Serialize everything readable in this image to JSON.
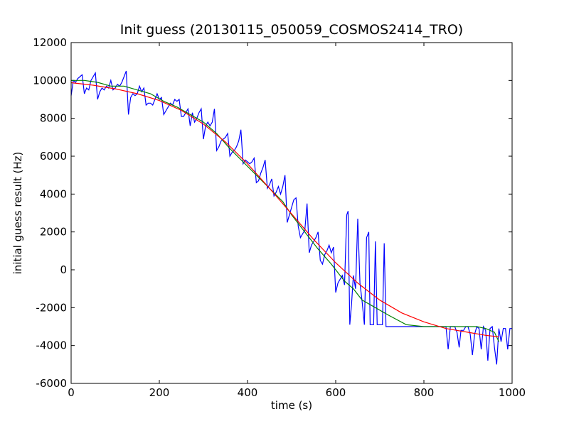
{
  "chart_data": {
    "type": "line",
    "title": "Init guess (20130115_050059_COSMOS2414_TRO)",
    "xlabel": "time (s)",
    "ylabel": "initial guess result (Hz)",
    "xlim": [
      0,
      1000
    ],
    "ylim": [
      -6000,
      12000
    ],
    "xticks": [
      0,
      200,
      400,
      600,
      800,
      1000
    ],
    "yticks": [
      -6000,
      -4000,
      -2000,
      0,
      2000,
      4000,
      6000,
      8000,
      10000,
      12000
    ],
    "grid": false,
    "legend": "none",
    "series": [
      {
        "color": "#0000ff",
        "points": [
          [
            0,
            9200
          ],
          [
            5,
            10000
          ],
          [
            10,
            9900
          ],
          [
            15,
            10100
          ],
          [
            20,
            10200
          ],
          [
            25,
            10300
          ],
          [
            30,
            9300
          ],
          [
            35,
            9600
          ],
          [
            40,
            9500
          ],
          [
            45,
            10000
          ],
          [
            50,
            10200
          ],
          [
            55,
            10400
          ],
          [
            60,
            9000
          ],
          [
            65,
            9400
          ],
          [
            70,
            9600
          ],
          [
            75,
            9500
          ],
          [
            80,
            9700
          ],
          [
            85,
            9600
          ],
          [
            90,
            10000
          ],
          [
            95,
            9500
          ],
          [
            100,
            9600
          ],
          [
            105,
            9800
          ],
          [
            110,
            9700
          ],
          [
            115,
            9900
          ],
          [
            120,
            10200
          ],
          [
            125,
            10500
          ],
          [
            130,
            8200
          ],
          [
            135,
            9100
          ],
          [
            140,
            9300
          ],
          [
            145,
            9200
          ],
          [
            150,
            9300
          ],
          [
            155,
            9700
          ],
          [
            160,
            9400
          ],
          [
            165,
            9600
          ],
          [
            170,
            8700
          ],
          [
            175,
            8800
          ],
          [
            180,
            8800
          ],
          [
            185,
            8700
          ],
          [
            190,
            9000
          ],
          [
            195,
            9300
          ],
          [
            200,
            9000
          ],
          [
            205,
            9100
          ],
          [
            210,
            8200
          ],
          [
            215,
            8400
          ],
          [
            220,
            8600
          ],
          [
            225,
            8800
          ],
          [
            230,
            8700
          ],
          [
            235,
            9000
          ],
          [
            240,
            8900
          ],
          [
            245,
            9000
          ],
          [
            250,
            8100
          ],
          [
            255,
            8100
          ],
          [
            260,
            8300
          ],
          [
            265,
            8500
          ],
          [
            270,
            7600
          ],
          [
            275,
            8300
          ],
          [
            280,
            7800
          ],
          [
            285,
            8000
          ],
          [
            290,
            8300
          ],
          [
            295,
            8500
          ],
          [
            300,
            6900
          ],
          [
            305,
            7600
          ],
          [
            310,
            7800
          ],
          [
            315,
            7600
          ],
          [
            320,
            7800
          ],
          [
            325,
            8500
          ],
          [
            330,
            6300
          ],
          [
            335,
            6500
          ],
          [
            340,
            6800
          ],
          [
            345,
            6900
          ],
          [
            350,
            7000
          ],
          [
            355,
            7200
          ],
          [
            360,
            6000
          ],
          [
            365,
            6200
          ],
          [
            370,
            6300
          ],
          [
            375,
            6500
          ],
          [
            380,
            6800
          ],
          [
            385,
            7400
          ],
          [
            390,
            5600
          ],
          [
            395,
            5800
          ],
          [
            400,
            5700
          ],
          [
            405,
            5600
          ],
          [
            410,
            5700
          ],
          [
            415,
            5900
          ],
          [
            420,
            4600
          ],
          [
            425,
            4700
          ],
          [
            430,
            5100
          ],
          [
            435,
            5400
          ],
          [
            440,
            5800
          ],
          [
            445,
            4300
          ],
          [
            450,
            4500
          ],
          [
            455,
            4800
          ],
          [
            460,
            3900
          ],
          [
            465,
            4100
          ],
          [
            470,
            4400
          ],
          [
            475,
            4000
          ],
          [
            480,
            4400
          ],
          [
            485,
            5000
          ],
          [
            490,
            2500
          ],
          [
            495,
            2900
          ],
          [
            500,
            3300
          ],
          [
            505,
            3700
          ],
          [
            510,
            3800
          ],
          [
            515,
            2300
          ],
          [
            520,
            1700
          ],
          [
            525,
            1900
          ],
          [
            530,
            2100
          ],
          [
            535,
            3500
          ],
          [
            540,
            900
          ],
          [
            545,
            1300
          ],
          [
            550,
            1500
          ],
          [
            555,
            1700
          ],
          [
            560,
            2000
          ],
          [
            565,
            500
          ],
          [
            570,
            300
          ],
          [
            575,
            800
          ],
          [
            580,
            1000
          ],
          [
            585,
            1300
          ],
          [
            590,
            900
          ],
          [
            595,
            1200
          ],
          [
            600,
            -1200
          ],
          [
            605,
            -700
          ],
          [
            610,
            -500
          ],
          [
            615,
            -300
          ],
          [
            620,
            -800
          ],
          [
            625,
            2900
          ],
          [
            628,
            3100
          ],
          [
            632,
            -2900
          ],
          [
            636,
            -1800
          ],
          [
            640,
            -300
          ],
          [
            645,
            -1000
          ],
          [
            650,
            2700
          ],
          [
            655,
            -700
          ],
          [
            660,
            -1700
          ],
          [
            665,
            -2900
          ],
          [
            670,
            1700
          ],
          [
            675,
            2000
          ],
          [
            678,
            -2900
          ],
          [
            682,
            -2900
          ],
          [
            686,
            -2900
          ],
          [
            690,
            1500
          ],
          [
            694,
            -2900
          ],
          [
            698,
            -2900
          ],
          [
            702,
            -2900
          ],
          [
            706,
            -2900
          ],
          [
            710,
            1400
          ],
          [
            714,
            -3000
          ],
          [
            720,
            -3000
          ],
          [
            760,
            -3000
          ],
          [
            800,
            -3000
          ],
          [
            840,
            -3000
          ],
          [
            850,
            -3000
          ],
          [
            855,
            -4200
          ],
          [
            860,
            -3000
          ],
          [
            870,
            -3000
          ],
          [
            875,
            -3300
          ],
          [
            880,
            -4100
          ],
          [
            884,
            -3200
          ],
          [
            890,
            -3200
          ],
          [
            895,
            -3000
          ],
          [
            900,
            -3000
          ],
          [
            905,
            -3400
          ],
          [
            910,
            -4500
          ],
          [
            915,
            -3400
          ],
          [
            920,
            -3000
          ],
          [
            925,
            -3100
          ],
          [
            930,
            -4200
          ],
          [
            935,
            -3000
          ],
          [
            940,
            -3200
          ],
          [
            945,
            -4800
          ],
          [
            950,
            -3100
          ],
          [
            955,
            -3000
          ],
          [
            960,
            -4100
          ],
          [
            965,
            -5000
          ],
          [
            970,
            -3100
          ],
          [
            975,
            -3800
          ],
          [
            980,
            -3100
          ],
          [
            985,
            -3100
          ],
          [
            990,
            -4200
          ],
          [
            995,
            -3100
          ],
          [
            1000,
            -3100
          ]
        ]
      },
      {
        "color": "#008000",
        "points": [
          [
            0,
            10000
          ],
          [
            30,
            10000
          ],
          [
            60,
            9900
          ],
          [
            90,
            9700
          ],
          [
            120,
            9700
          ],
          [
            150,
            9500
          ],
          [
            180,
            9300
          ],
          [
            210,
            8900
          ],
          [
            240,
            8600
          ],
          [
            270,
            8200
          ],
          [
            300,
            7800
          ],
          [
            330,
            7200
          ],
          [
            360,
            6400
          ],
          [
            390,
            5700
          ],
          [
            420,
            5000
          ],
          [
            450,
            4300
          ],
          [
            480,
            3600
          ],
          [
            500,
            2900
          ],
          [
            530,
            2000
          ],
          [
            560,
            1100
          ],
          [
            590,
            300
          ],
          [
            620,
            -600
          ],
          [
            640,
            -1000
          ],
          [
            660,
            -1600
          ],
          [
            690,
            -2000
          ],
          [
            720,
            -2400
          ],
          [
            760,
            -2900
          ],
          [
            800,
            -3000
          ],
          [
            840,
            -3000
          ],
          [
            880,
            -3000
          ],
          [
            920,
            -3000
          ],
          [
            940,
            -3100
          ],
          [
            960,
            -3300
          ],
          [
            970,
            -3800
          ]
        ]
      },
      {
        "color": "#ff0000",
        "points": [
          [
            0,
            9880
          ],
          [
            50,
            9750
          ],
          [
            100,
            9560
          ],
          [
            150,
            9300
          ],
          [
            200,
            8940
          ],
          [
            250,
            8420
          ],
          [
            300,
            7700
          ],
          [
            350,
            6750
          ],
          [
            400,
            5600
          ],
          [
            450,
            4300
          ],
          [
            500,
            2950
          ],
          [
            550,
            1600
          ],
          [
            600,
            370
          ],
          [
            650,
            -700
          ],
          [
            700,
            -1600
          ],
          [
            750,
            -2280
          ],
          [
            800,
            -2750
          ],
          [
            850,
            -3100
          ],
          [
            900,
            -3300
          ],
          [
            940,
            -3460
          ],
          [
            970,
            -3540
          ]
        ]
      }
    ]
  }
}
